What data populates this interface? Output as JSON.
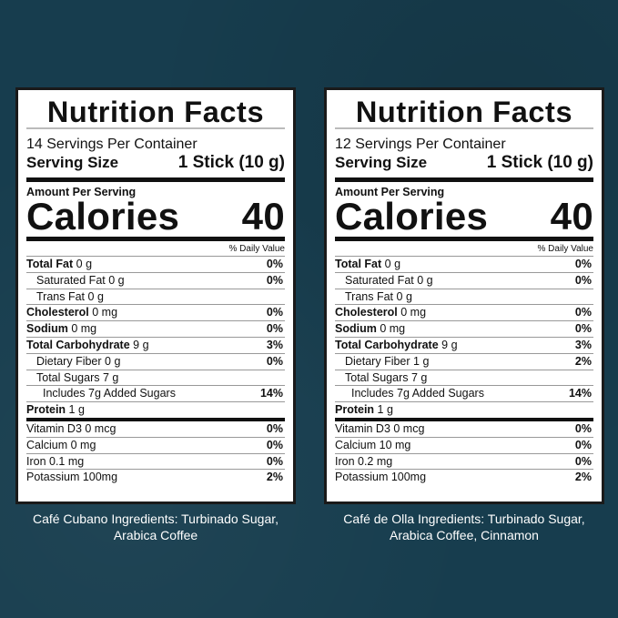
{
  "labels": [
    {
      "title": "Nutrition Facts",
      "servings": "14 Servings Per Container",
      "serving_size_label": "Serving Size",
      "serving_size_value": "1 Stick (10 g)",
      "amount_per_serving": "Amount Per Serving",
      "calories_label": "Calories",
      "calories_value": "40",
      "daily_value_header": "% Daily Value",
      "nutrients": [
        {
          "name": "Total Fat",
          "amount": "0 g",
          "dv": "0%",
          "indent": 0,
          "bold": true
        },
        {
          "name": "Saturated Fat",
          "amount": "0 g",
          "dv": "0%",
          "indent": 1,
          "bold": false
        },
        {
          "name": "Trans Fat",
          "amount": "0 g",
          "dv": "",
          "indent": 1,
          "bold": false
        },
        {
          "name": "Cholesterol",
          "amount": "0 mg",
          "dv": "0%",
          "indent": 0,
          "bold": true
        },
        {
          "name": "Sodium",
          "amount": "0 mg",
          "dv": "0%",
          "indent": 0,
          "bold": true
        },
        {
          "name": "Total Carbohydrate",
          "amount": "9 g",
          "dv": "3%",
          "indent": 0,
          "bold": true
        },
        {
          "name": "Dietary Fiber",
          "amount": "0 g",
          "dv": "0%",
          "indent": 1,
          "bold": false
        },
        {
          "name": "Total Sugars",
          "amount": "7 g",
          "dv": "",
          "indent": 1,
          "bold": false
        },
        {
          "name": "Includes 7g Added Sugars",
          "amount": "",
          "dv": "14%",
          "indent": 2,
          "bold": false
        },
        {
          "name": "Protein",
          "amount": "1 g",
          "dv": "",
          "indent": 0,
          "bold": true
        }
      ],
      "vitamins": [
        {
          "name": "Vitamin D3 0 mcg",
          "dv": "0%"
        },
        {
          "name": "Calcium 0 mg",
          "dv": "0%"
        },
        {
          "name": "Iron 0.1 mg",
          "dv": "0%"
        },
        {
          "name": "Potassium 100mg",
          "dv": "2%"
        }
      ],
      "caption_line1": "Café Cubano Ingredients: Turbinado Sugar,",
      "caption_line2": "Arabica Coffee"
    },
    {
      "title": "Nutrition Facts",
      "servings": "12 Servings Per Container",
      "serving_size_label": "Serving Size",
      "serving_size_value": "1 Stick (10 g)",
      "amount_per_serving": "Amount Per Serving",
      "calories_label": "Calories",
      "calories_value": "40",
      "daily_value_header": "% Daily Value",
      "nutrients": [
        {
          "name": "Total Fat",
          "amount": "0 g",
          "dv": "0%",
          "indent": 0,
          "bold": true
        },
        {
          "name": "Saturated Fat",
          "amount": "0 g",
          "dv": "0%",
          "indent": 1,
          "bold": false
        },
        {
          "name": "Trans Fat",
          "amount": "0 g",
          "dv": "",
          "indent": 1,
          "bold": false
        },
        {
          "name": "Cholesterol",
          "amount": "0 mg",
          "dv": "0%",
          "indent": 0,
          "bold": true
        },
        {
          "name": "Sodium",
          "amount": "0 mg",
          "dv": "0%",
          "indent": 0,
          "bold": true
        },
        {
          "name": "Total Carbohydrate",
          "amount": "9 g",
          "dv": "3%",
          "indent": 0,
          "bold": true
        },
        {
          "name": "Dietary Fiber",
          "amount": "1 g",
          "dv": "2%",
          "indent": 1,
          "bold": false
        },
        {
          "name": "Total Sugars",
          "amount": "7 g",
          "dv": "",
          "indent": 1,
          "bold": false
        },
        {
          "name": "Includes 7g Added Sugars",
          "amount": "",
          "dv": "14%",
          "indent": 2,
          "bold": false
        },
        {
          "name": "Protein",
          "amount": "1 g",
          "dv": "",
          "indent": 0,
          "bold": true
        }
      ],
      "vitamins": [
        {
          "name": "Vitamin D3 0 mcg",
          "dv": "0%"
        },
        {
          "name": "Calcium 10 mg",
          "dv": "0%"
        },
        {
          "name": "Iron 0.2 mg",
          "dv": "0%"
        },
        {
          "name": "Potassium 100mg",
          "dv": "2%"
        }
      ],
      "caption_line1": "Café de Olla Ingredients: Turbinado Sugar,",
      "caption_line2": "Arabica Coffee, Cinnamon"
    }
  ]
}
